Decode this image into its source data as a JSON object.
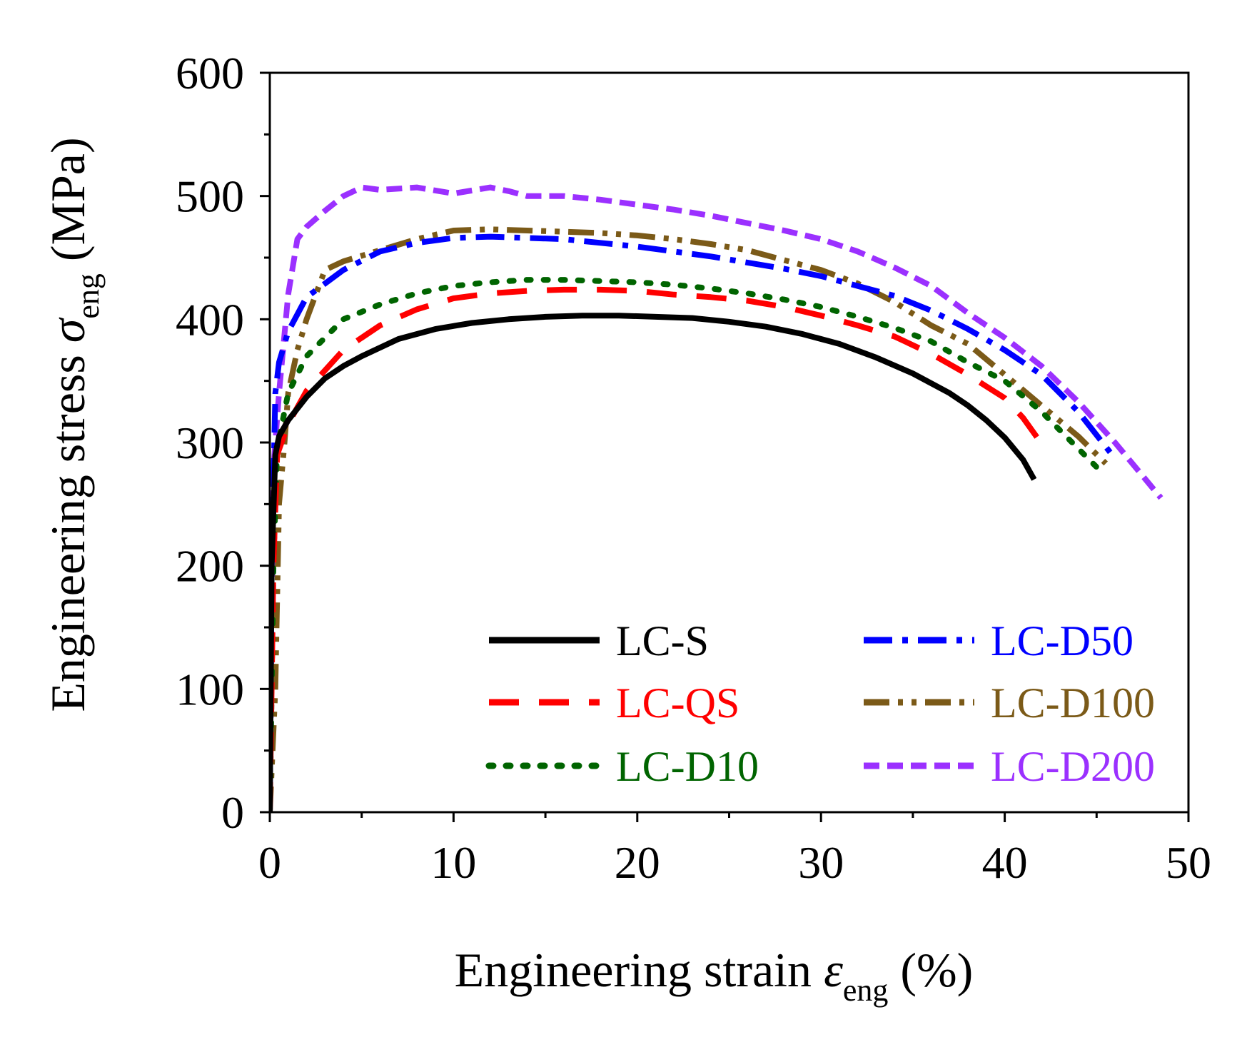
{
  "chart_data": {
    "type": "line",
    "xlabel": {
      "prefix": "Engineering strain ",
      "symbol": "ε",
      "subscript": "eng",
      "suffix": " (%)"
    },
    "ylabel": {
      "prefix": "Engineering stress ",
      "symbol": "σ",
      "subscript": "eng",
      "suffix": " (MPa)"
    },
    "xlim": [
      0,
      50
    ],
    "ylim": [
      0,
      600
    ],
    "x_ticks": [
      0,
      10,
      20,
      30,
      40,
      50
    ],
    "y_ticks": [
      0,
      100,
      200,
      300,
      400,
      500,
      600
    ],
    "grid": false,
    "legend_position": "bottom-right, two columns",
    "series": [
      {
        "name": "LC-S",
        "color": "#000000",
        "style": "solid",
        "x": [
          0,
          0.1,
          0.3,
          0.5,
          1,
          2,
          3,
          4,
          5,
          7,
          9,
          11,
          13,
          15,
          17,
          19,
          21,
          23,
          25,
          27,
          29,
          31,
          33,
          35,
          37,
          38,
          39,
          40,
          41,
          41.6
        ],
        "y": [
          0,
          200,
          290,
          305,
          318,
          337,
          352,
          362,
          370,
          384,
          392,
          397,
          400,
          402,
          403,
          403,
          402,
          401,
          398,
          394,
          388,
          380,
          369,
          356,
          340,
          330,
          318,
          304,
          286,
          270
        ]
      },
      {
        "name": "LC-QS",
        "color": "#ff0000",
        "style": "dashed",
        "x": [
          0,
          0.2,
          0.4,
          1,
          2,
          4,
          6,
          8,
          10,
          12,
          14,
          16,
          18,
          20,
          22,
          24,
          26,
          28,
          30,
          32,
          34,
          36,
          38,
          40,
          41,
          42.2
        ],
        "y": [
          0,
          200,
          290,
          315,
          342,
          375,
          395,
          408,
          417,
          421,
          423,
          424,
          424,
          423,
          420,
          418,
          415,
          410,
          403,
          395,
          386,
          372,
          355,
          336,
          320,
          295
        ]
      },
      {
        "name": "LC-D10",
        "color": "#006400",
        "style": "dotted",
        "x": [
          0,
          0.2,
          0.4,
          1,
          2,
          4,
          6,
          8,
          10,
          12,
          14,
          16,
          18,
          20,
          22,
          24,
          26,
          28,
          30,
          32,
          34,
          36,
          38,
          40,
          42,
          43,
          44,
          45
        ],
        "y": [
          0,
          200,
          295,
          340,
          370,
          400,
          412,
          421,
          427,
          430,
          432,
          432,
          431,
          430,
          428,
          425,
          421,
          416,
          410,
          402,
          393,
          382,
          365,
          350,
          325,
          310,
          295,
          280
        ]
      },
      {
        "name": "LC-D50",
        "color": "#0000ff",
        "style": "dash-dot",
        "x": [
          0,
          0.1,
          0.3,
          0.5,
          1,
          2,
          4,
          6,
          8,
          10,
          12,
          14,
          16,
          18,
          20,
          22,
          24,
          26,
          28,
          30,
          32,
          34,
          36,
          38,
          40,
          42,
          44,
          46
        ],
        "y": [
          0,
          200,
          340,
          365,
          390,
          418,
          440,
          455,
          462,
          466,
          467,
          466,
          465,
          462,
          459,
          455,
          451,
          446,
          441,
          435,
          427,
          419,
          407,
          392,
          375,
          355,
          325,
          287
        ]
      },
      {
        "name": "LC-D100",
        "color": "#7b5a18",
        "style": "dash-dot-dot",
        "x": [
          0,
          0.3,
          0.5,
          0.8,
          1,
          1.5,
          2,
          3,
          4,
          6,
          8,
          10,
          12,
          14,
          16,
          18,
          20,
          22,
          24,
          26,
          28,
          30,
          32,
          34,
          36,
          38,
          40,
          42,
          44,
          45.5
        ],
        "y": [
          0,
          100,
          250,
          300,
          340,
          375,
          400,
          440,
          447,
          456,
          465,
          472,
          473,
          472,
          471,
          470,
          468,
          465,
          461,
          456,
          448,
          440,
          429,
          414,
          395,
          380,
          355,
          330,
          305,
          283
        ]
      },
      {
        "name": "LC-D200",
        "color": "#9b30ff",
        "style": "short-dash",
        "x": [
          0,
          0.1,
          0.2,
          0.5,
          1,
          1.5,
          2,
          3,
          4,
          5,
          6,
          8,
          10,
          12,
          13,
          14,
          16,
          18,
          20,
          22,
          24,
          26,
          28,
          30,
          32,
          34,
          36,
          38,
          40,
          42,
          44,
          46,
          48.5
        ],
        "y": [
          0,
          150,
          280,
          340,
          420,
          465,
          475,
          488,
          500,
          507,
          505,
          507,
          502,
          507,
          504,
          500,
          500,
          497,
          493,
          489,
          484,
          478,
          472,
          465,
          455,
          442,
          427,
          405,
          385,
          362,
          333,
          300,
          255
        ]
      }
    ]
  }
}
